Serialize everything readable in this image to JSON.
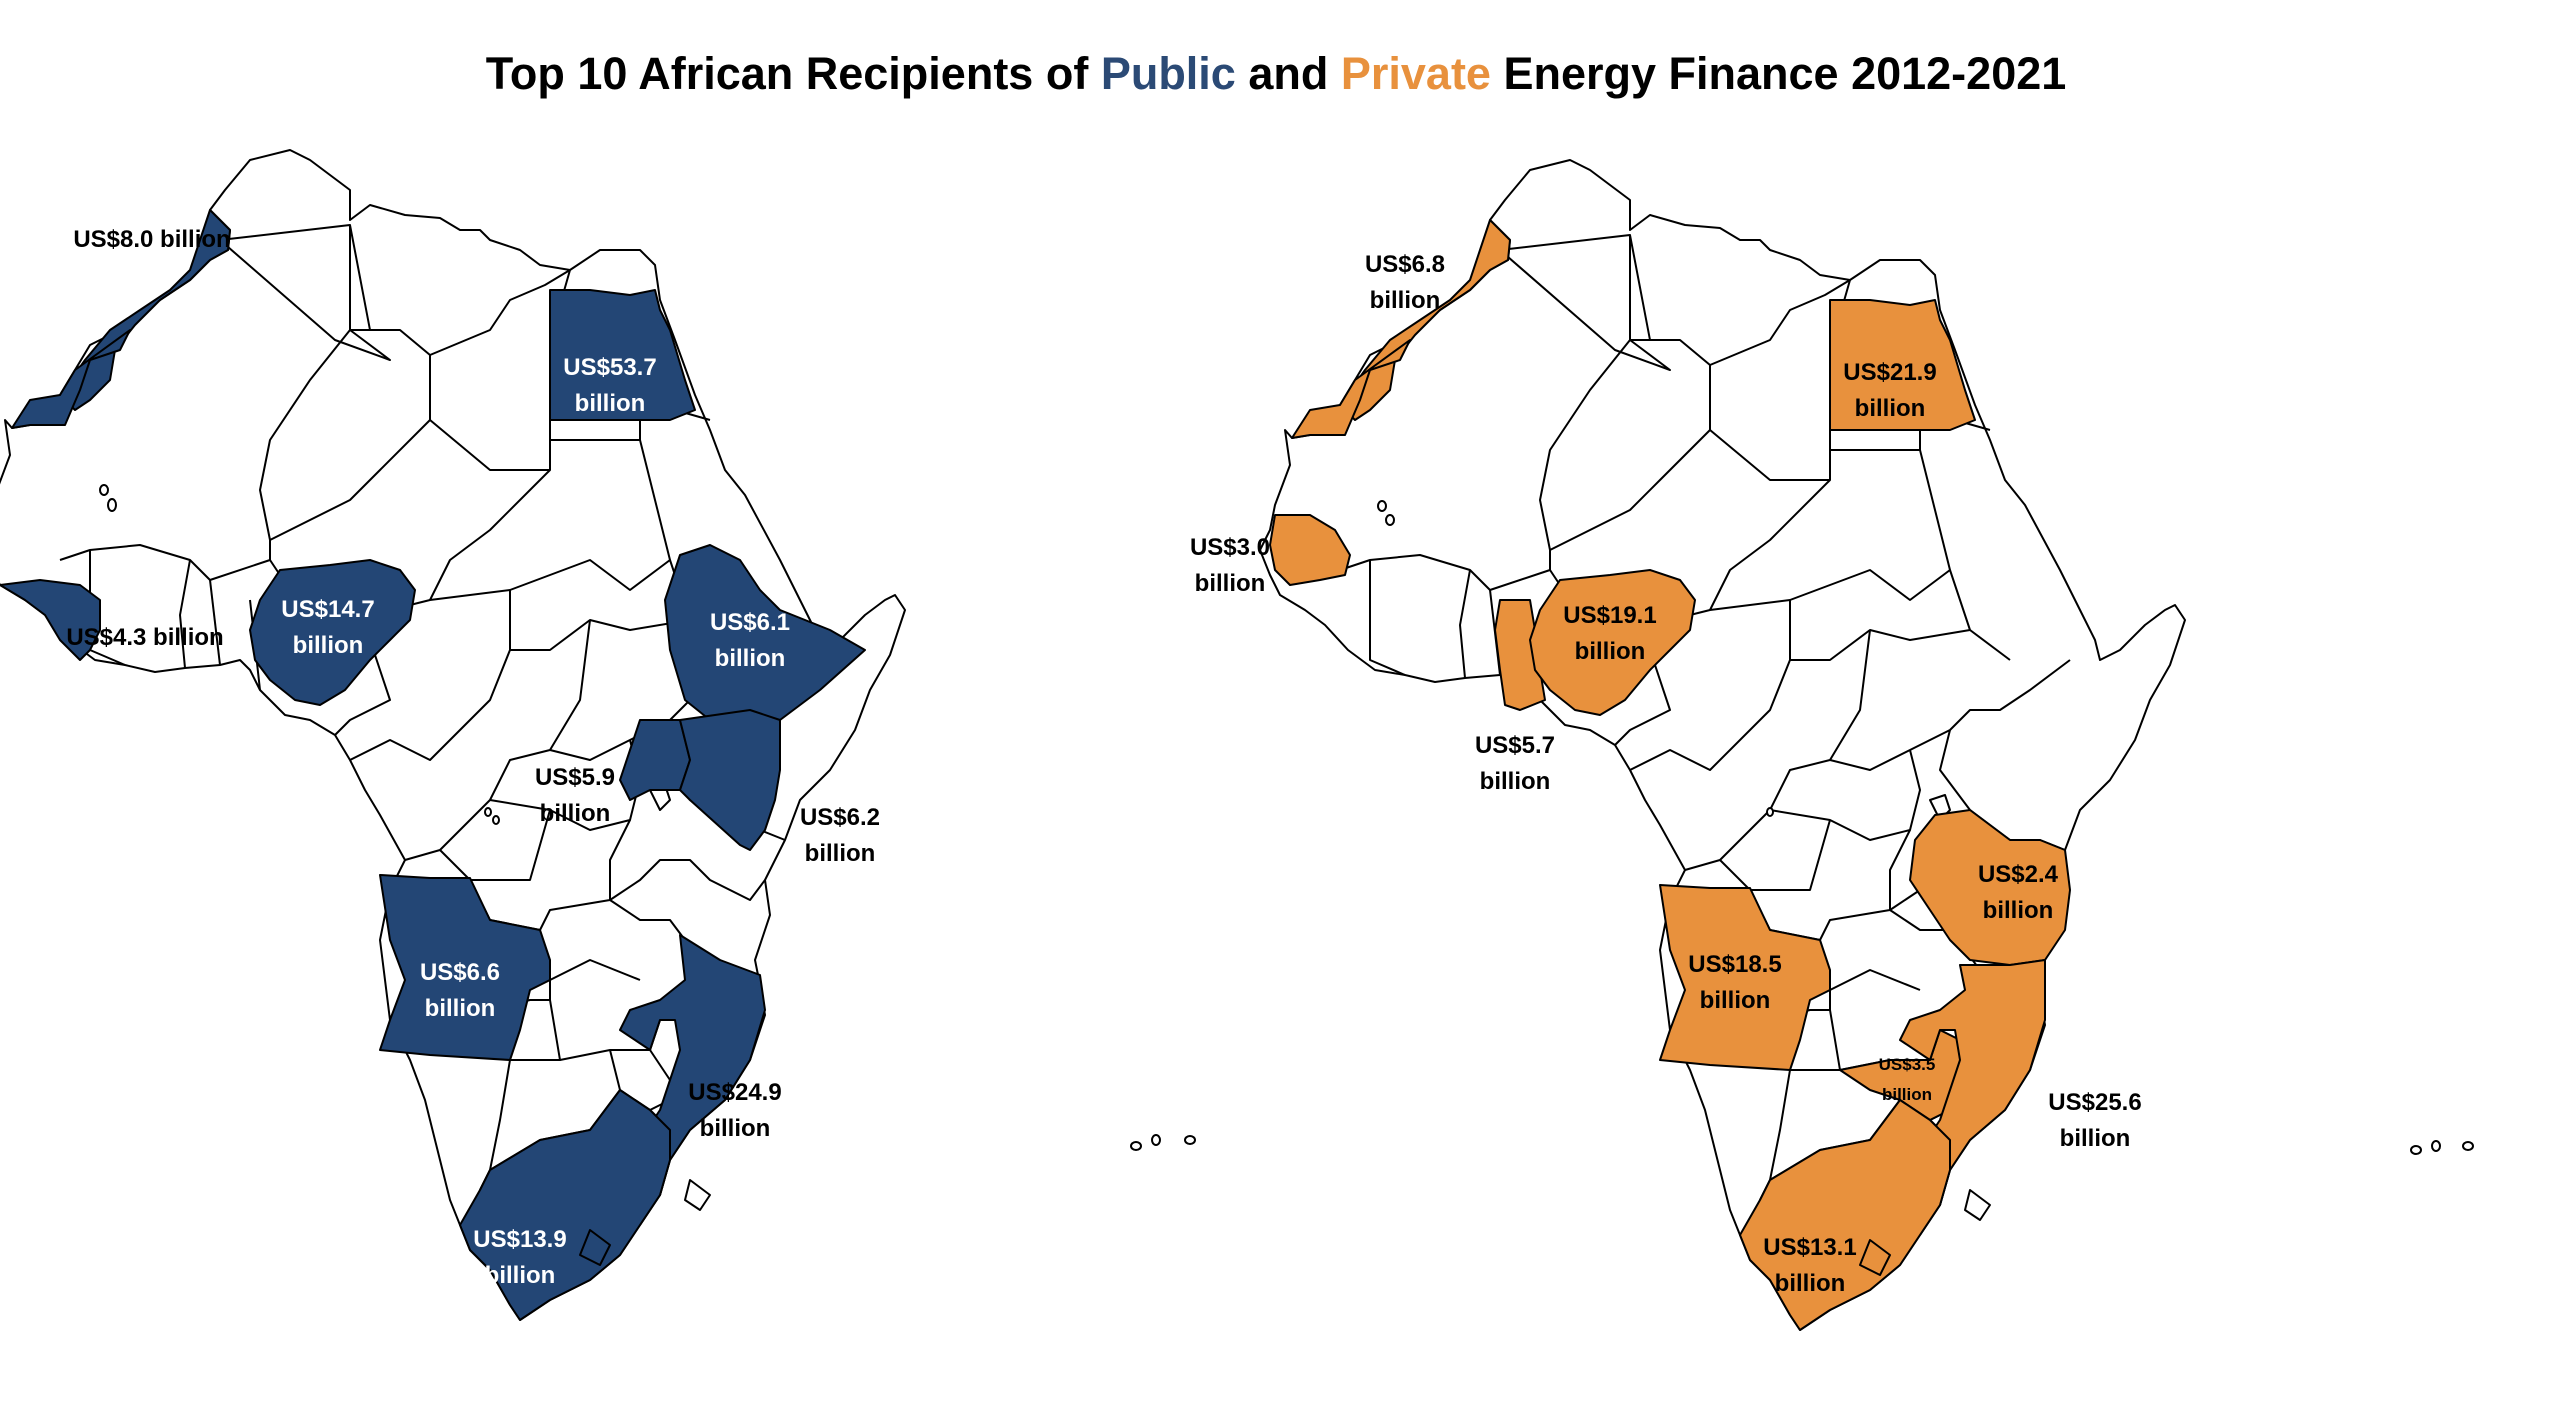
{
  "title": {
    "prefix": "Top 10 African Recipients of ",
    "public_word": "Public",
    "middle": " and ",
    "private_word": "Private",
    "suffix": " Energy Finance 2012-2021"
  },
  "colors": {
    "public": "#234675",
    "private": "#e8913d",
    "land": "#ffffff",
    "border": "#000000"
  },
  "public_map": {
    "morocco": [
      "US$8.0 billion"
    ],
    "guinea": [
      "US$4.3 billion"
    ],
    "nigeria": [
      "US$14.7",
      "billion"
    ],
    "egypt": [
      "US$53.7",
      "billion"
    ],
    "ethiopia": [
      "US$6.1",
      "billion"
    ],
    "uganda": [
      "US$5.9",
      "billion"
    ],
    "kenya": [
      "US$6.2",
      "billion"
    ],
    "angola": [
      "US$6.6",
      "billion"
    ],
    "mozambique": [
      "US$24.9",
      "billion"
    ],
    "south_africa": [
      "US$13.9",
      "billion"
    ]
  },
  "private_map": {
    "morocco": [
      "US$6.8",
      "billion"
    ],
    "senegal": [
      "US$3.0",
      "billion"
    ],
    "ghana": [
      "US$5.7",
      "billion"
    ],
    "nigeria": [
      "US$19.1",
      "billion"
    ],
    "egypt": [
      "US$21.9",
      "billion"
    ],
    "tanzania": [
      "US$2.4",
      "billion"
    ],
    "angola": [
      "US$18.5",
      "billion"
    ],
    "zimbabwe": [
      "US$3.5",
      "billion"
    ],
    "mozambique": [
      "US$25.6",
      "billion"
    ],
    "south_africa": [
      "US$13.1",
      "billion"
    ]
  }
}
